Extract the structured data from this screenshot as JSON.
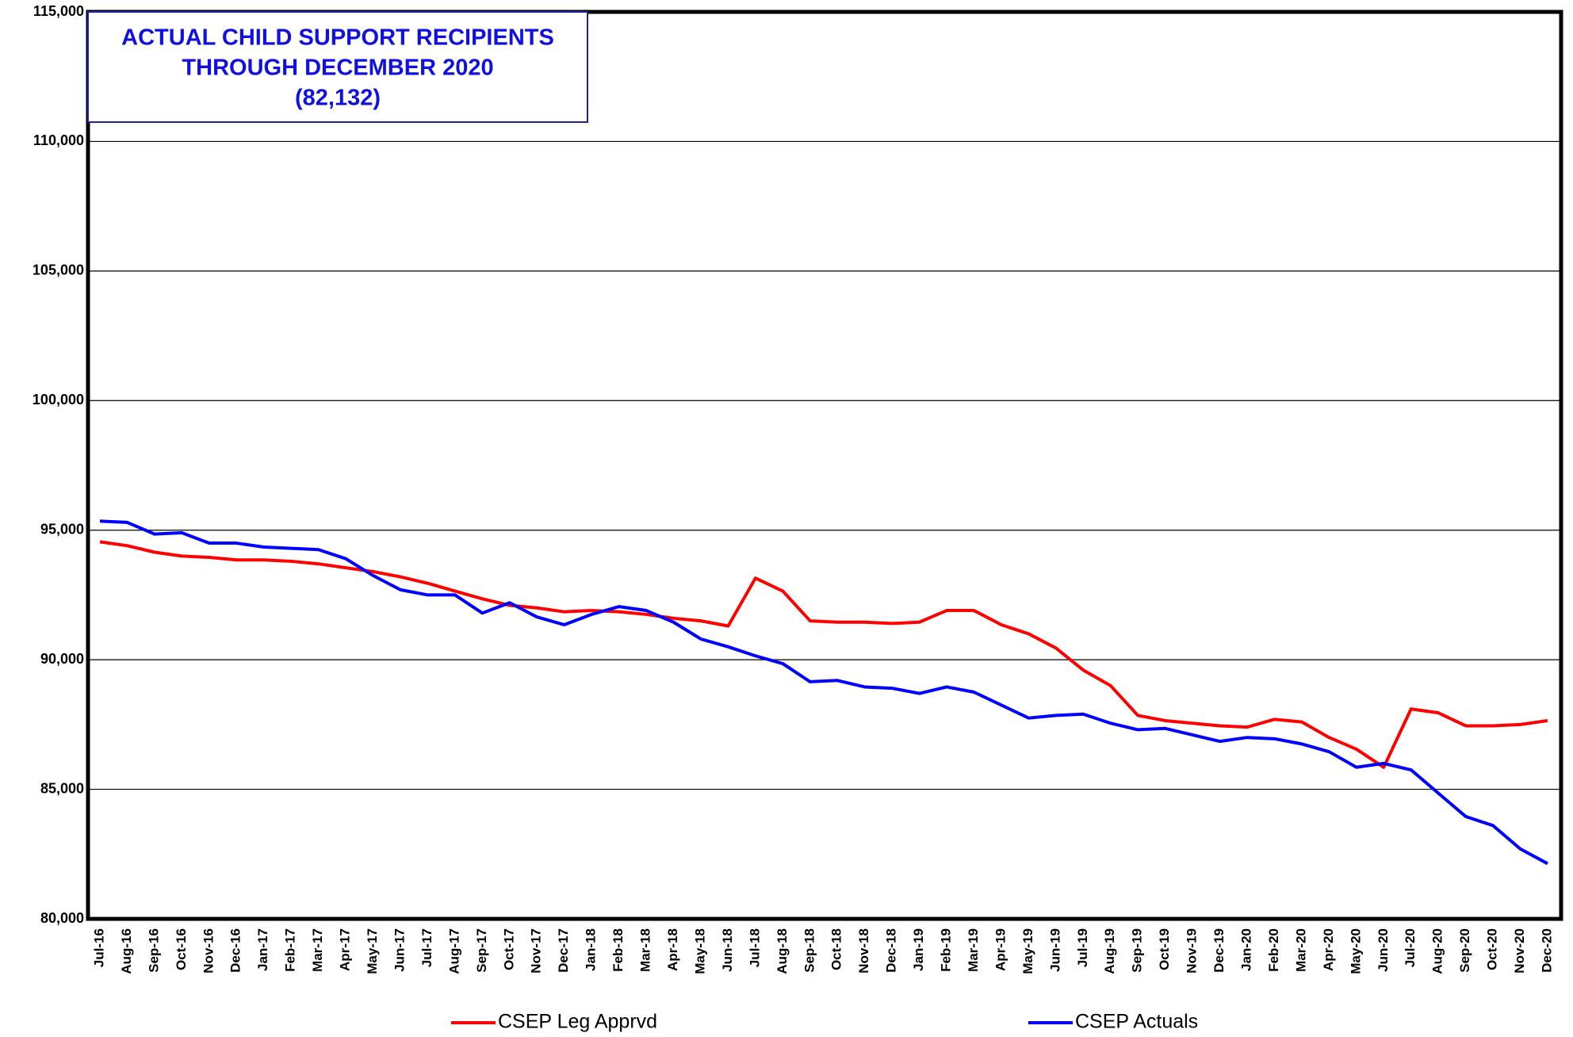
{
  "chart_data": {
    "type": "line",
    "title": [
      "ACTUAL CHILD SUPPORT RECIPIENTS",
      "THROUGH DECEMBER 2020",
      "(82,132)"
    ],
    "categories": [
      "Jul-16",
      "Aug-16",
      "Sep-16",
      "Oct-16",
      "Nov-16",
      "Dec-16",
      "Jan-17",
      "Feb-17",
      "Mar-17",
      "Apr-17",
      "May-17",
      "Jun-17",
      "Jul-17",
      "Aug-17",
      "Sep-17",
      "Oct-17",
      "Nov-17",
      "Dec-17",
      "Jan-18",
      "Feb-18",
      "Mar-18",
      "Apr-18",
      "May-18",
      "Jun-18",
      "Jul-18",
      "Aug-18",
      "Sep-18",
      "Oct-18",
      "Nov-18",
      "Dec-18",
      "Jan-19",
      "Feb-19",
      "Mar-19",
      "Apr-19",
      "May-19",
      "Jun-19",
      "Jul-19",
      "Aug-19",
      "Sep-19",
      "Oct-19",
      "Nov-19",
      "Dec-19",
      "Jan-20",
      "Feb-20",
      "Mar-20",
      "Apr-20",
      "May-20",
      "Jun-20",
      "Jul-20",
      "Aug-20",
      "Sep-20",
      "Oct-20",
      "Nov-20",
      "Dec-20"
    ],
    "series": [
      {
        "name": "CSEP Leg Apprvd",
        "color": "#ff0000",
        "values": [
          94550,
          94400,
          94150,
          94000,
          93950,
          93850,
          93850,
          93800,
          93700,
          93550,
          93400,
          93200,
          92950,
          92650,
          92350,
          92100,
          92000,
          91850,
          91900,
          91850,
          91750,
          91600,
          91500,
          91300,
          93150,
          92650,
          91500,
          91450,
          91450,
          91400,
          91450,
          91900,
          91900,
          91350,
          91000,
          90450,
          89600,
          89000,
          87850,
          87650,
          87550,
          87450,
          87400,
          87700,
          87600,
          87000,
          86550,
          85850,
          88100,
          87950,
          87450,
          87450,
          87500,
          87650
        ]
      },
      {
        "name": "CSEP Actuals",
        "color": "#0000ff",
        "values": [
          95350,
          95300,
          94850,
          94900,
          94500,
          94500,
          94350,
          94300,
          94250,
          93900,
          93250,
          92700,
          92500,
          92500,
          91800,
          92200,
          91650,
          91350,
          91750,
          92050,
          91900,
          91450,
          90800,
          90500,
          90150,
          89850,
          89150,
          89200,
          88950,
          88900,
          88700,
          88950,
          88750,
          88250,
          87750,
          87850,
          87900,
          87550,
          87300,
          87350,
          87100,
          86850,
          87000,
          86950,
          86750,
          86450,
          85850,
          86000,
          85750,
          84850,
          83950,
          83600,
          82700,
          82132
        ]
      }
    ],
    "ylim": [
      80000,
      115000
    ],
    "yticks": [
      {
        "value": 80000,
        "label": "80,000"
      },
      {
        "value": 85000,
        "label": "85,000"
      },
      {
        "value": 90000,
        "label": "90,000"
      },
      {
        "value": 95000,
        "label": "95,000"
      },
      {
        "value": 100000,
        "label": "100,000"
      },
      {
        "value": 105000,
        "label": "105,000"
      },
      {
        "value": 110000,
        "label": "110,000"
      },
      {
        "value": 115000,
        "label": "115,000"
      }
    ],
    "grid": true,
    "legend": "bottom"
  }
}
